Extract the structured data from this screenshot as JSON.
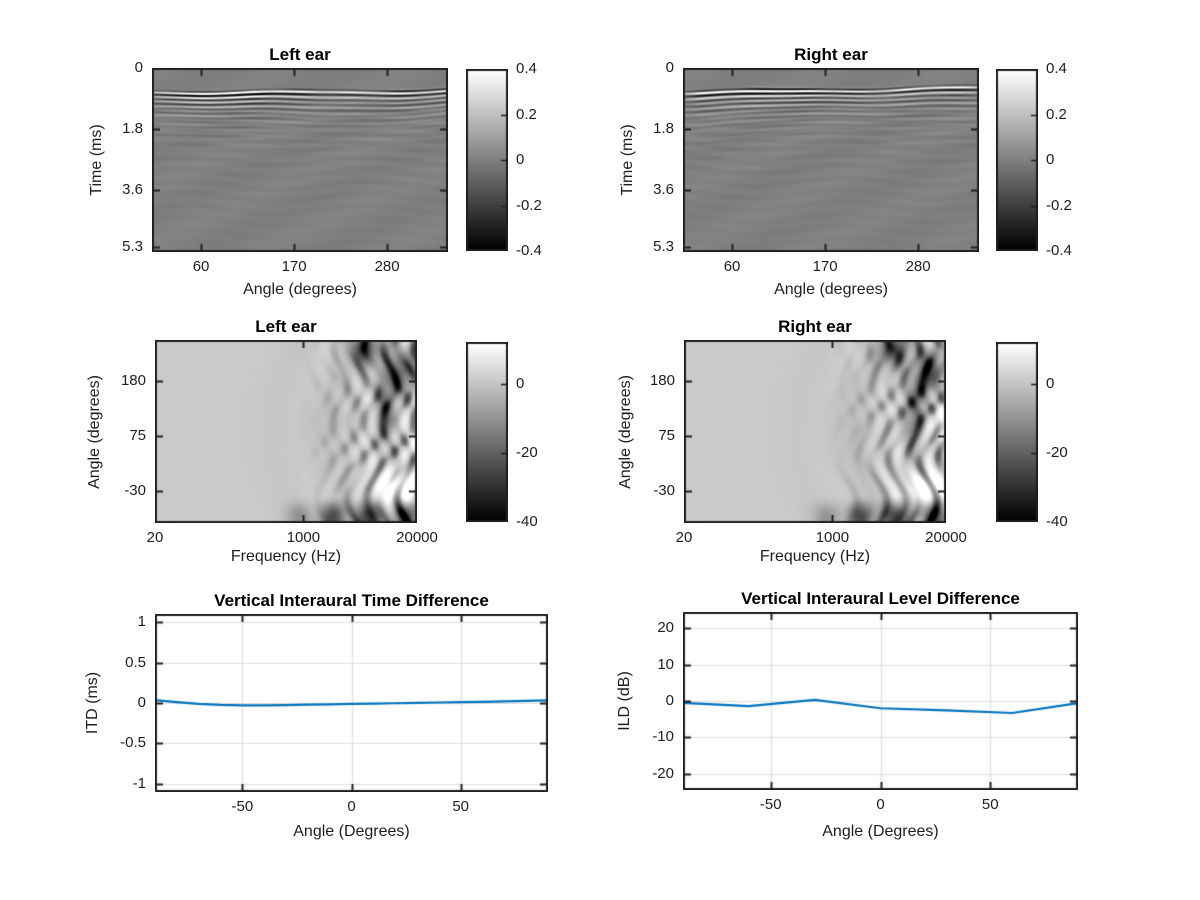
{
  "figure": {
    "background": "#ffffff",
    "axis_color": "#1f1f1f",
    "grid_color": "#e0e0e0",
    "text_color": "#1f1f1f",
    "line_color": "#0072bd",
    "colormap": "gray (white to black)"
  },
  "chart_data": [
    {
      "type": "heatmap",
      "pattern": "hrir",
      "seed": 0.4,
      "title": "Left ear",
      "xlabel": "Angle (degrees)",
      "ylabel": "Time (ms)",
      "xscale": "linear",
      "xlim": [
        2,
        352
      ],
      "ytop": 0,
      "ybottom": 5.45,
      "xticks": [
        {
          "v": 60,
          "label": "60"
        },
        {
          "v": 170,
          "label": "170"
        },
        {
          "v": 280,
          "label": "280"
        }
      ],
      "yticks": [
        {
          "v": 0,
          "label": "0"
        },
        {
          "v": 1.8,
          "label": "1.8"
        },
        {
          "v": 3.6,
          "label": "3.6"
        },
        {
          "v": 5.3,
          "label": "5.3"
        }
      ],
      "colorbar": {
        "clim": [
          -0.4,
          0.4
        ],
        "ticks": [
          {
            "v": 0.4,
            "label": "0.4"
          },
          {
            "v": 0.2,
            "label": "0.2"
          },
          {
            "v": 0,
            "label": "0"
          },
          {
            "v": -0.2,
            "label": "-0.2"
          },
          {
            "v": -0.4,
            "label": "-0.4"
          }
        ]
      },
      "description": "Left-ear head-related impulse responses vs source angle: uniform mid-gray (value 0) with a strong oscillatory wavefront arriving near 0.6-1.2 ms at every angle, ripples decaying by about 2 ms."
    },
    {
      "type": "heatmap",
      "pattern": "hrir",
      "seed": 2.3,
      "title": "Right ear",
      "xlabel": "Angle (degrees)",
      "ylabel": "Time (ms)",
      "xscale": "linear",
      "xlim": [
        2,
        352
      ],
      "ytop": 0,
      "ybottom": 5.45,
      "xticks": [
        {
          "v": 60,
          "label": "60"
        },
        {
          "v": 170,
          "label": "170"
        },
        {
          "v": 280,
          "label": "280"
        }
      ],
      "yticks": [
        {
          "v": 0,
          "label": "0"
        },
        {
          "v": 1.8,
          "label": "1.8"
        },
        {
          "v": 3.6,
          "label": "3.6"
        },
        {
          "v": 5.3,
          "label": "5.3"
        }
      ],
      "colorbar": {
        "clim": [
          -0.4,
          0.4
        ],
        "ticks": [
          {
            "v": 0.4,
            "label": "0.4"
          },
          {
            "v": 0.2,
            "label": "0.2"
          },
          {
            "v": 0,
            "label": "0"
          },
          {
            "v": -0.2,
            "label": "-0.2"
          },
          {
            "v": -0.4,
            "label": "-0.4"
          }
        ]
      },
      "description": "Right-ear head-related impulse responses vs source angle: uniform mid-gray (value 0) with a strong oscillatory wavefront arriving near 0.6-1.2 ms at every angle, ripples decaying by about 2 ms."
    },
    {
      "type": "heatmap",
      "pattern": "hrtf",
      "seed": 0.9,
      "title": "Left ear",
      "xlabel": "Frequency (Hz)",
      "ylabel": "Angle (degrees)",
      "xscale": "log",
      "xlim": [
        20,
        20000
      ],
      "ytop": 258,
      "ybottom": -91,
      "xticks": [
        {
          "v": 20,
          "label": "20"
        },
        {
          "v": 1000,
          "label": "1000"
        },
        {
          "v": 20000,
          "label": "20000"
        }
      ],
      "yticks": [
        {
          "v": 180,
          "label": "180"
        },
        {
          "v": 75,
          "label": "75"
        },
        {
          "v": -30,
          "label": "-30"
        }
      ],
      "colorbar": {
        "clim": [
          -40,
          12
        ],
        "ticks": [
          {
            "v": 0,
            "label": "0"
          },
          {
            "v": -20,
            "label": "-20"
          },
          {
            "v": -40,
            "label": "-40"
          }
        ]
      },
      "description": "Left-ear HRTF magnitude in dB: nearly uniform light gray (about 0 dB) below 1 kHz, mottled dark notches (down to -40 dB) and bright peaks above 2 kHz, dark band at lowest angles near 20 kHz and a bright lobe around -30 to -60 degrees at the highest frequencies."
    },
    {
      "type": "heatmap",
      "pattern": "hrtf",
      "seed": 3.1,
      "title": "Right ear",
      "xlabel": "Frequency (Hz)",
      "ylabel": "Angle (degrees)",
      "xscale": "log",
      "xlim": [
        20,
        20000
      ],
      "ytop": 258,
      "ybottom": -91,
      "xticks": [
        {
          "v": 20,
          "label": "20"
        },
        {
          "v": 1000,
          "label": "1000"
        },
        {
          "v": 20000,
          "label": "20000"
        }
      ],
      "yticks": [
        {
          "v": 180,
          "label": "180"
        },
        {
          "v": 75,
          "label": "75"
        },
        {
          "v": -30,
          "label": "-30"
        }
      ],
      "colorbar": {
        "clim": [
          -40,
          12
        ],
        "ticks": [
          {
            "v": 0,
            "label": "0"
          },
          {
            "v": -20,
            "label": "-20"
          },
          {
            "v": -40,
            "label": "-40"
          }
        ]
      },
      "description": "Right-ear HRTF magnitude in dB: nearly uniform light gray (about 0 dB) below 1 kHz, mottled dark notches (down to -40 dB) and bright peaks above 2 kHz, dark band at lowest angles near 20 kHz and a bright lobe around -30 to -60 degrees at the highest frequencies."
    },
    {
      "type": "line",
      "title": "Vertical Interaural Time Difference",
      "xlabel": "Angle (Degrees)",
      "ylabel": "ITD (ms)",
      "xscale": "linear",
      "xlim": [
        -90,
        90
      ],
      "ytop": 1.1,
      "ybottom": -1.1,
      "xticks": [
        {
          "v": -50,
          "label": "-50"
        },
        {
          "v": 0,
          "label": "0"
        },
        {
          "v": 50,
          "label": "50"
        }
      ],
      "yticks": [
        {
          "v": 1,
          "label": "1"
        },
        {
          "v": 0.5,
          "label": "0.5"
        },
        {
          "v": 0,
          "label": "0"
        },
        {
          "v": -0.5,
          "label": "-0.5"
        },
        {
          "v": -1,
          "label": "-1"
        }
      ],
      "x": [
        -90,
        -80,
        -70,
        -60,
        -50,
        -40,
        -30,
        -20,
        -10,
        0,
        10,
        20,
        30,
        40,
        50,
        60,
        70,
        80,
        90
      ],
      "y": [
        0.035,
        0.01,
        -0.012,
        -0.024,
        -0.03,
        -0.029,
        -0.026,
        -0.021,
        -0.016,
        -0.011,
        -0.007,
        -0.003,
        0.002,
        0.006,
        0.01,
        0.015,
        0.02,
        0.026,
        0.032
      ]
    },
    {
      "type": "line",
      "title": "Vertical Interaural Level Difference",
      "xlabel": "Angle (Degrees)",
      "ylabel": "ILD (dB)",
      "xscale": "linear",
      "xlim": [
        -90,
        90
      ],
      "ytop": 24.5,
      "ybottom": -24.5,
      "xticks": [
        {
          "v": -50,
          "label": "-50"
        },
        {
          "v": 0,
          "label": "0"
        },
        {
          "v": 50,
          "label": "50"
        }
      ],
      "yticks": [
        {
          "v": 20,
          "label": "20"
        },
        {
          "v": 10,
          "label": "10"
        },
        {
          "v": 0,
          "label": "0"
        },
        {
          "v": -10,
          "label": "-10"
        },
        {
          "v": -20,
          "label": "-20"
        }
      ],
      "x": [
        -90,
        -60,
        -30,
        0,
        30,
        60,
        90
      ],
      "y": [
        -0.5,
        -1.4,
        0.3,
        -2.0,
        -2.6,
        -3.3,
        -0.6
      ]
    }
  ]
}
